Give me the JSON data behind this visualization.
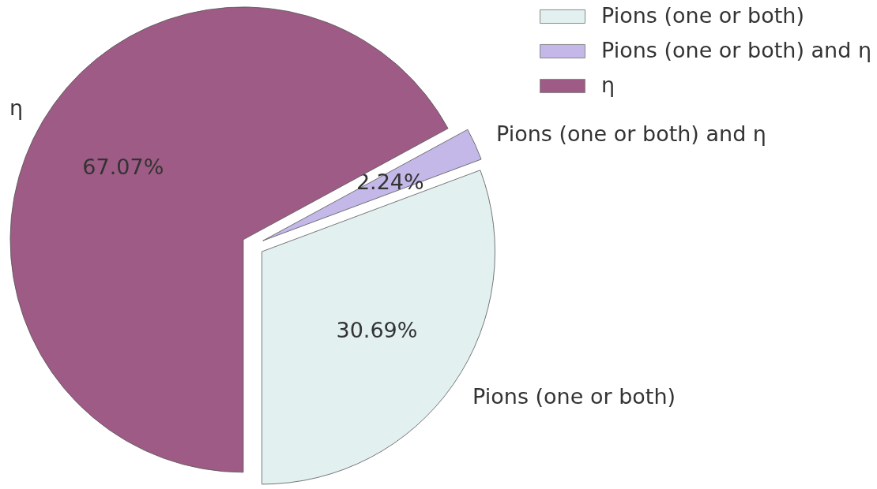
{
  "chart_data": {
    "type": "pie",
    "categories": [
      "Pions (one or both)",
      "Pions (one or both) and η",
      "η"
    ],
    "values": [
      30.69,
      2.24,
      67.07
    ],
    "colors": [
      "#e2f1f0",
      "#c4b8e8",
      "#9e5b85"
    ],
    "value_labels": [
      "30.69%",
      "2.24%",
      "67.07%"
    ],
    "legend": "top right"
  }
}
